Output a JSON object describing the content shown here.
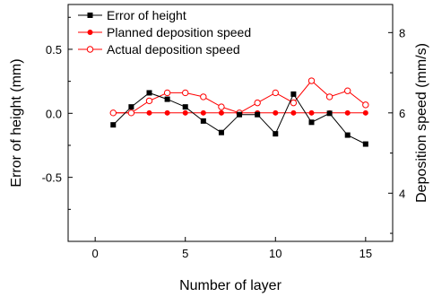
{
  "chart_data": {
    "type": "line",
    "xlabel": "Number of layer",
    "ylabel_left": "Error of height (mm)",
    "ylabel_right": "Deposition speed (mm/s)",
    "x_axis": {
      "range": [
        -1.5,
        16.5
      ],
      "ticks": [
        0,
        5,
        10,
        15
      ]
    },
    "y_left": {
      "range": [
        -1.0,
        0.85
      ],
      "ticks": [
        -0.5,
        0.0,
        0.5
      ],
      "tick_labels": [
        "-0.5",
        "0.0",
        "0.5"
      ]
    },
    "y_right": {
      "range": [
        2.8,
        8.7
      ],
      "ticks": [
        4,
        6,
        8
      ]
    },
    "legend_position": "top-left",
    "grid": false,
    "series": [
      {
        "name": "Error of height",
        "axis": "left",
        "color": "#000000",
        "marker": "filled-square",
        "x": [
          1,
          2,
          3,
          4,
          5,
          6,
          7,
          8,
          9,
          10,
          11,
          12,
          13,
          14,
          15
        ],
        "values": [
          -0.09,
          0.05,
          0.16,
          0.11,
          0.05,
          -0.06,
          -0.15,
          -0.01,
          -0.01,
          -0.16,
          0.15,
          -0.07,
          0.0,
          -0.17,
          -0.24
        ]
      },
      {
        "name": "Planned deposition speed",
        "axis": "right",
        "color": "#ff0000",
        "marker": "filled-circle",
        "x": [
          1,
          2,
          3,
          4,
          5,
          6,
          7,
          8,
          9,
          10,
          11,
          12,
          13,
          14,
          15
        ],
        "values": [
          6,
          6,
          6,
          6,
          6,
          6,
          6,
          6,
          6,
          6,
          6,
          6,
          6,
          6,
          6
        ]
      },
      {
        "name": "Actual deposition speed",
        "axis": "right",
        "color": "#ff0000",
        "marker": "open-circle",
        "x": [
          1,
          2,
          3,
          4,
          5,
          6,
          7,
          8,
          9,
          10,
          11,
          12,
          13,
          14,
          15
        ],
        "values": [
          6.0,
          6.0,
          6.3,
          6.5,
          6.5,
          6.4,
          6.15,
          6.0,
          6.25,
          6.5,
          6.25,
          6.8,
          6.4,
          6.55,
          6.2
        ]
      }
    ]
  }
}
